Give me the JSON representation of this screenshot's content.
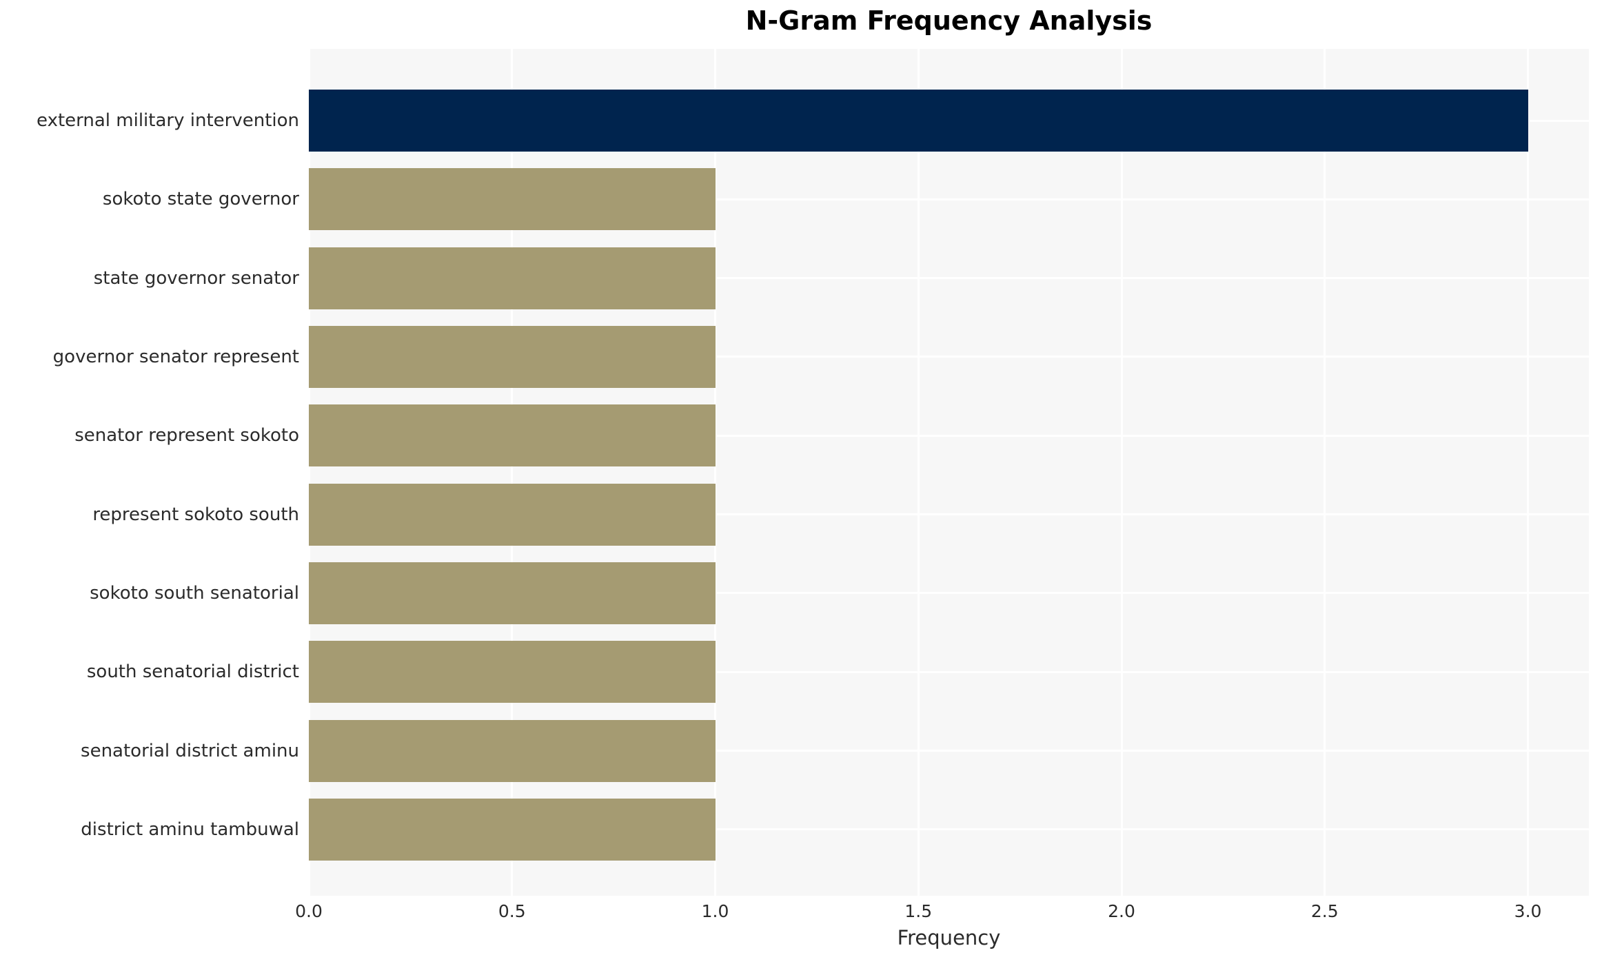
{
  "chart_data": {
    "type": "bar",
    "orientation": "horizontal",
    "title": "N-Gram Frequency Analysis",
    "xlabel": "Frequency",
    "ylabel": "",
    "categories": [
      "external military intervention",
      "sokoto state governor",
      "state governor senator",
      "governor senator represent",
      "senator represent sokoto",
      "represent sokoto south",
      "sokoto south senatorial",
      "south senatorial district",
      "senatorial district aminu",
      "district aminu tambuwal"
    ],
    "values": [
      3,
      1,
      1,
      1,
      1,
      1,
      1,
      1,
      1,
      1
    ],
    "bar_colors": [
      "#00244E",
      "#A59B72",
      "#A59B72",
      "#A59B72",
      "#A59B72",
      "#A59B72",
      "#A59B72",
      "#A59B72",
      "#A59B72",
      "#A59B72"
    ],
    "x_ticks": [
      0.0,
      0.5,
      1.0,
      1.5,
      2.0,
      2.5,
      3.0
    ],
    "x_tick_labels": [
      "0.0",
      "0.5",
      "1.0",
      "1.5",
      "2.0",
      "2.5",
      "3.0"
    ],
    "xlim": [
      0,
      3.15
    ],
    "grid": true,
    "legend_position": "none",
    "colors": {
      "highlight_bar": "#00244E",
      "base_bar": "#A59B72",
      "panel_background": "#F7F7F7",
      "gridline": "#FFFFFF",
      "title_text": "#000000",
      "axis_text": "#2B2B2B",
      "page_background": "#FFFFFF"
    }
  }
}
